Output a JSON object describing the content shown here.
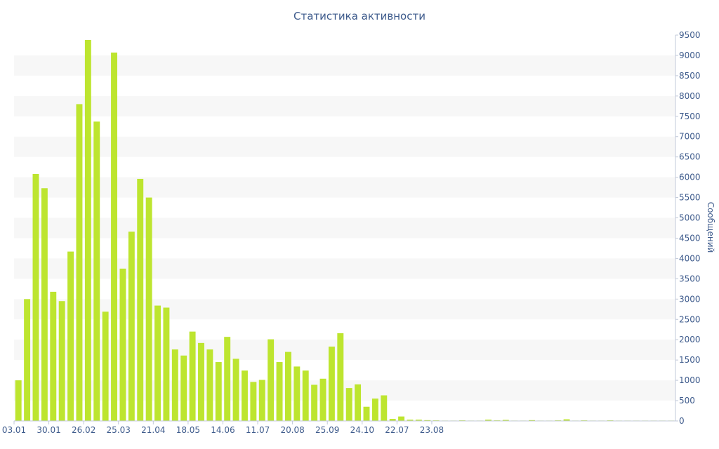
{
  "chart_data": {
    "type": "bar",
    "title": "Статистика активности",
    "ylabel": "Сообщений",
    "ylim": [
      0,
      9500
    ],
    "ytick_step": 500,
    "grid": "alternating horizontal bands",
    "bar_color": "#bde52f",
    "band_color": "#f7f7f7",
    "text_color": "#3e5b8c",
    "x_tick_labels": [
      {
        "label": "03.01",
        "index": 0
      },
      {
        "label": "30.01",
        "index": 4
      },
      {
        "label": "26.02",
        "index": 8
      },
      {
        "label": "25.03",
        "index": 12
      },
      {
        "label": "21.04",
        "index": 16
      },
      {
        "label": "18.05",
        "index": 20
      },
      {
        "label": "14.06",
        "index": 24
      },
      {
        "label": "11.07",
        "index": 28
      },
      {
        "label": "20.08",
        "index": 32
      },
      {
        "label": "25.09",
        "index": 36
      },
      {
        "label": "24.10",
        "index": 40
      },
      {
        "label": "22.07",
        "index": 44
      },
      {
        "label": "23.08",
        "index": 48
      }
    ],
    "values": [
      1000,
      3000,
      6080,
      5730,
      3180,
      2950,
      4170,
      7800,
      9380,
      7370,
      2690,
      9070,
      3750,
      4660,
      5960,
      5500,
      2840,
      2790,
      1760,
      1610,
      2200,
      1920,
      1760,
      1450,
      2070,
      1530,
      1240,
      960,
      1010,
      2010,
      1450,
      1700,
      1340,
      1240,
      890,
      1040,
      1830,
      2160,
      810,
      900,
      350,
      550,
      630,
      50,
      110,
      30,
      30,
      20,
      15,
      10,
      10,
      15,
      10,
      10,
      30,
      15,
      25,
      10,
      10,
      20,
      10,
      10,
      15,
      40,
      10,
      15,
      10,
      10,
      15,
      10,
      10,
      10,
      10,
      10,
      10,
      10
    ]
  }
}
